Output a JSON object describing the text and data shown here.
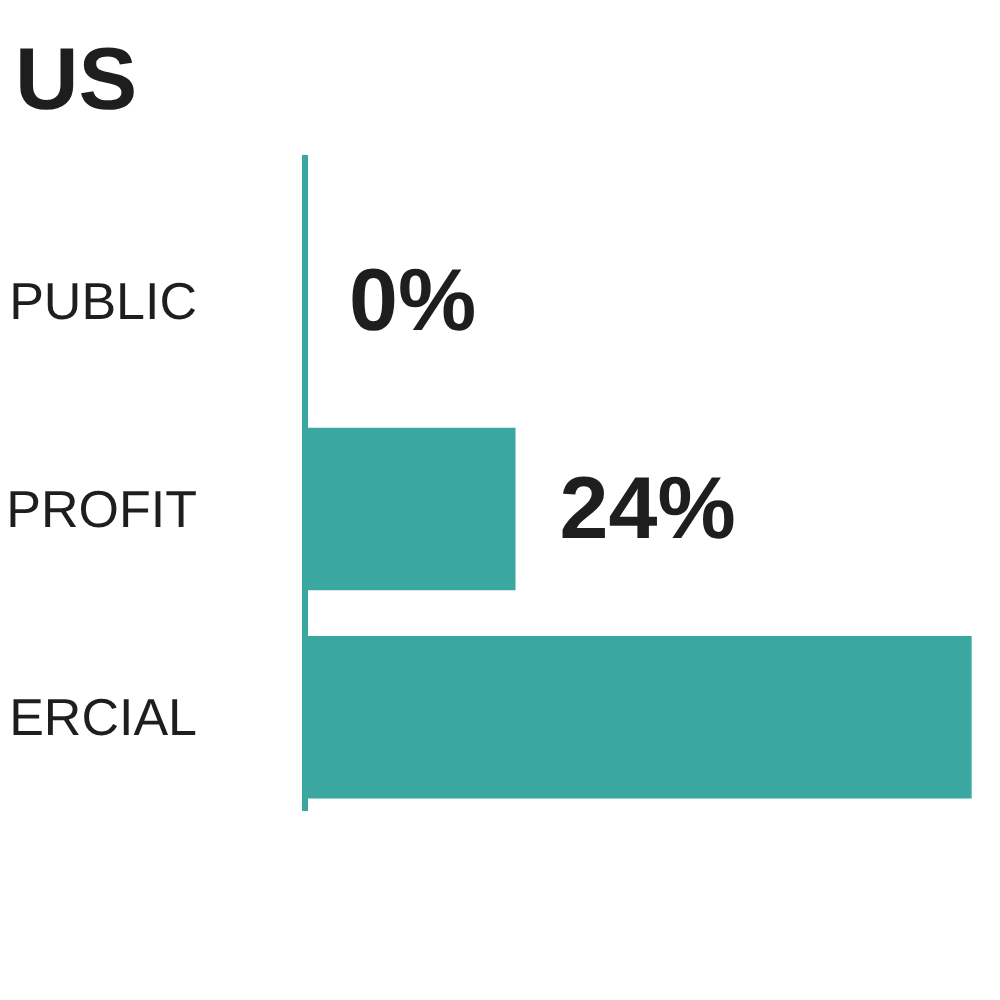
{
  "chart_data": {
    "type": "bar",
    "orientation": "horizontal",
    "title": "US",
    "categories": [
      "PUBLIC",
      "PROFIT",
      "ERCIAL"
    ],
    "values": [
      0,
      24,
      76
    ],
    "color": "#3aa8a0",
    "value_labels": [
      "0%",
      "24%",
      null
    ]
  }
}
